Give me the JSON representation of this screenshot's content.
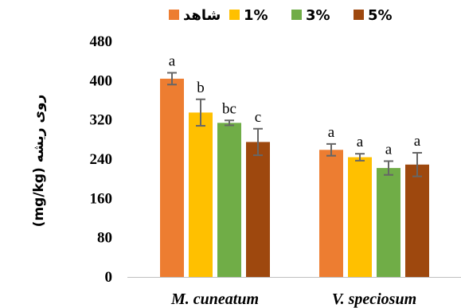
{
  "chart_data": {
    "type": "bar",
    "categories": [
      "M. cuneatum",
      "V. speciosum"
    ],
    "series": [
      {
        "name": "شاهد",
        "color": "#ED7D31",
        "values": [
          404,
          259
        ],
        "errors": [
          12,
          12
        ],
        "labels": [
          "a",
          "a"
        ]
      },
      {
        "name": "1%",
        "color": "#FFC000",
        "values": [
          335,
          244
        ],
        "errors": [
          27,
          7
        ],
        "labels": [
          "b",
          "a"
        ]
      },
      {
        "name": "3%",
        "color": "#70AD47",
        "values": [
          314,
          222
        ],
        "errors": [
          5,
          14
        ],
        "labels": [
          "bc",
          "a"
        ]
      },
      {
        "name": "5%",
        "color": "#9E480E",
        "values": [
          275,
          229
        ],
        "errors": [
          27,
          24
        ],
        "labels": [
          "c",
          "a"
        ]
      }
    ],
    "ylabel": "(mg/kg) روی ریشه",
    "ylim": [
      0,
      480
    ],
    "yticks": [
      "0",
      "80",
      "160",
      "240",
      "320",
      "400",
      "480"
    ],
    "legend_position": "top",
    "grid": false
  }
}
